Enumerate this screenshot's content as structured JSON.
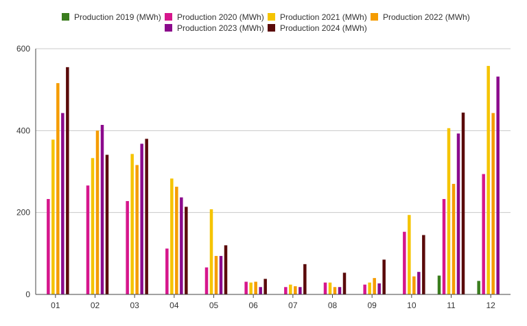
{
  "chart_data": {
    "type": "bar",
    "title": "",
    "xlabel": "",
    "ylabel": "",
    "ylim": [
      0,
      600
    ],
    "yticks": [
      0,
      200,
      400,
      600
    ],
    "grid": true,
    "legend_position": "top",
    "categories": [
      "01",
      "02",
      "03",
      "04",
      "05",
      "06",
      "07",
      "08",
      "09",
      "10",
      "11",
      "12"
    ],
    "series": [
      {
        "name": "Production 2019 (MWh)",
        "color": "#3a7d1e",
        "values": [
          null,
          null,
          null,
          null,
          null,
          null,
          null,
          null,
          null,
          null,
          46,
          33
        ]
      },
      {
        "name": "Production 2020 (MWh)",
        "color": "#d6168c",
        "values": [
          233,
          266,
          228,
          112,
          66,
          31,
          18,
          29,
          24,
          153,
          233,
          294
        ]
      },
      {
        "name": "Production 2021 (MWh)",
        "color": "#f5c400",
        "values": [
          378,
          333,
          343,
          283,
          208,
          29,
          24,
          29,
          29,
          194,
          406,
          558
        ]
      },
      {
        "name": "Production 2022 (MWh)",
        "color": "#f59c00",
        "values": [
          516,
          400,
          316,
          263,
          94,
          31,
          20,
          18,
          40,
          44,
          270,
          443
        ]
      },
      {
        "name": "Production 2023 (MWh)",
        "color": "#8b0a8c",
        "values": [
          443,
          414,
          368,
          237,
          94,
          18,
          18,
          18,
          27,
          55,
          393,
          532
        ]
      },
      {
        "name": "Production 2024 (MWh)",
        "color": "#5a0a0a",
        "values": [
          555,
          341,
          380,
          214,
          120,
          38,
          74,
          53,
          85,
          145,
          444,
          null
        ]
      }
    ]
  }
}
